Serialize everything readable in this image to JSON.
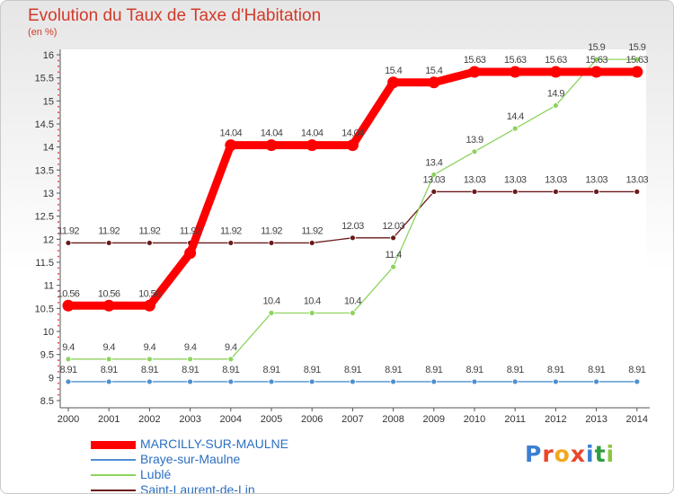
{
  "header": {
    "title": "Evolution du Taux de Taxe d'Habitation",
    "subtitle": "(en %)"
  },
  "logo": {
    "letters": [
      "P",
      "r",
      "o",
      "x",
      "i",
      "t",
      "i"
    ],
    "colors": [
      "#3b7fd1",
      "#e8462a",
      "#f2a81d",
      "#e8462a",
      "#3b7fd1",
      "#2e9e3f",
      "#8cc640"
    ]
  },
  "chart_data": {
    "type": "line",
    "title": "Evolution du Taux de Taxe d'Habitation",
    "ylabel": "(en %)",
    "xlabel": "",
    "x": [
      "2000",
      "2001",
      "2002",
      "2003",
      "2004",
      "2005",
      "2006",
      "2007",
      "2008",
      "2009",
      "2010",
      "2011",
      "2012",
      "2013",
      "2014"
    ],
    "ylim": [
      8.5,
      16
    ],
    "yticks": [
      "8.5",
      "9",
      "9.5",
      "10",
      "10.5",
      "11",
      "11.5",
      "12",
      "12.5",
      "13",
      "13.5",
      "14",
      "14.5",
      "15",
      "15.5",
      "16"
    ],
    "grid": false,
    "legend_position": "bottom-left",
    "series": [
      {
        "name": "MARCILLY-SUR-MAULNE",
        "color": "#ff0000",
        "values": [
          10.56,
          10.56,
          10.56,
          11.7,
          14.04,
          14.04,
          14.04,
          14.04,
          15.4,
          15.4,
          15.63,
          15.63,
          15.63,
          15.63,
          15.63
        ],
        "labels": [
          "10.56",
          "10.56",
          "10.56",
          "",
          "14.04",
          "14.04",
          "14.04",
          "14.04",
          "15.4",
          "15.4",
          "15.63",
          "15.63",
          "15.63",
          "15.63",
          "15.63"
        ]
      },
      {
        "name": "Braye-sur-Maulne",
        "color": "#4f8fcf",
        "values": [
          8.91,
          8.91,
          8.91,
          8.91,
          8.91,
          8.91,
          8.91,
          8.91,
          8.91,
          8.91,
          8.91,
          8.91,
          8.91,
          8.91,
          8.91
        ],
        "labels": [
          "8.91",
          "8.91",
          "8.91",
          "8.91",
          "8.91",
          "8.91",
          "8.91",
          "8.91",
          "8.91",
          "8.91",
          "8.91",
          "8.91",
          "8.91",
          "8.91",
          "8.91"
        ]
      },
      {
        "name": "Lublé",
        "color": "#8dd35f",
        "values": [
          9.4,
          9.4,
          9.4,
          9.4,
          9.4,
          10.4,
          10.4,
          10.4,
          11.4,
          13.4,
          13.9,
          14.4,
          14.9,
          15.9,
          15.9
        ],
        "labels": [
          "9.4",
          "9.4",
          "9.4",
          "9.4",
          "9.4",
          "10.4",
          "10.4",
          "10.4",
          "11.4",
          "13.4",
          "13.9",
          "14.4",
          "14.9",
          "15.9",
          "15.9"
        ]
      },
      {
        "name": "Saint-Laurent-de-Lin",
        "color": "#6b1a1a",
        "values": [
          11.92,
          11.92,
          11.92,
          11.92,
          11.92,
          11.92,
          11.92,
          12.03,
          12.03,
          13.03,
          13.03,
          13.03,
          13.03,
          13.03,
          13.03
        ],
        "labels": [
          "11.92",
          "11.92",
          "11.92",
          "11.92",
          "11.92",
          "11.92",
          "11.92",
          "12.03",
          "12.03",
          "13.03",
          "13.03",
          "13.03",
          "13.03",
          "13.03",
          "13.03"
        ]
      }
    ]
  }
}
